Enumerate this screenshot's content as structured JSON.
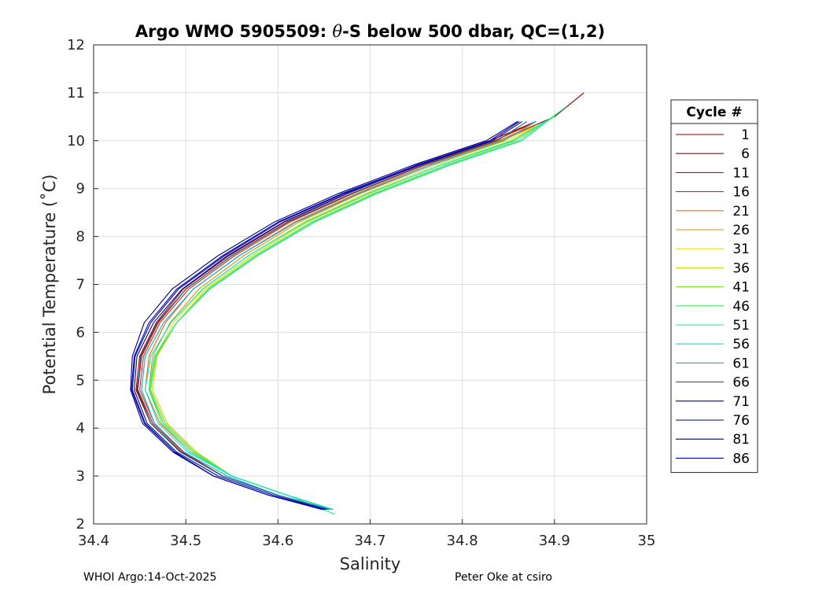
{
  "chart_data": {
    "type": "line",
    "title_prefix": "Argo WMO 5905509: ",
    "title_theta": "θ",
    "title_suffix": "-S below 500 dbar,  QC=(1,2)",
    "xlabel": "Salinity",
    "ylabel": "Potential Temperature (˚C)",
    "xlim": [
      34.4,
      35.0
    ],
    "ylim": [
      2,
      12
    ],
    "xticks": [
      "34.4",
      "34.5",
      "34.6",
      "34.7",
      "34.8",
      "34.9",
      "35"
    ],
    "yticks": [
      "2",
      "3",
      "4",
      "5",
      "6",
      "7",
      "8",
      "9",
      "10",
      "11",
      "12"
    ],
    "grid": true,
    "legend_title": "Cycle #",
    "legend_position": "right-outside",
    "series": [
      {
        "name": "1",
        "color": "#800000",
        "x": [
          34.655,
          34.6,
          34.54,
          34.495,
          34.462,
          34.447,
          34.452,
          34.47,
          34.5,
          34.55,
          34.61,
          34.68,
          34.76,
          34.84,
          34.9,
          34.932
        ],
        "y": [
          2.3,
          2.6,
          3.0,
          3.5,
          4.1,
          4.8,
          5.5,
          6.2,
          6.9,
          7.6,
          8.3,
          8.9,
          9.5,
          10.0,
          10.5,
          11.0
        ]
      },
      {
        "name": "6",
        "color": "#a00000",
        "x": [
          34.655,
          34.6,
          34.54,
          34.495,
          34.462,
          34.446,
          34.45,
          34.468,
          34.497,
          34.547,
          34.607,
          34.676,
          34.754,
          34.83,
          34.88
        ],
        "y": [
          2.3,
          2.6,
          3.0,
          3.5,
          4.1,
          4.8,
          5.5,
          6.2,
          6.9,
          7.6,
          8.3,
          8.9,
          9.5,
          10.0,
          10.4
        ]
      },
      {
        "name": "11",
        "color": "#e00000",
        "x": [
          34.655,
          34.6,
          34.54,
          34.497,
          34.464,
          34.448,
          34.452,
          34.47,
          34.5,
          34.55,
          34.61,
          34.68,
          34.758,
          34.835,
          34.88
        ],
        "y": [
          2.3,
          2.6,
          3.0,
          3.5,
          4.1,
          4.8,
          5.5,
          6.2,
          6.9,
          7.6,
          8.3,
          8.9,
          9.5,
          10.0,
          10.4
        ]
      },
      {
        "name": "16",
        "color": "#ff1800",
        "x": [
          34.655,
          34.6,
          34.54,
          34.498,
          34.466,
          34.45,
          34.454,
          34.472,
          34.503,
          34.553,
          34.613,
          34.682,
          34.76,
          34.835,
          34.87
        ],
        "y": [
          2.3,
          2.6,
          3.0,
          3.5,
          4.1,
          4.8,
          5.5,
          6.2,
          6.9,
          7.6,
          8.3,
          8.9,
          9.5,
          10.0,
          10.3
        ]
      },
      {
        "name": "21",
        "color": "#ff6000",
        "x": [
          34.658,
          34.61,
          34.55,
          34.505,
          34.472,
          34.456,
          34.46,
          34.478,
          34.508,
          34.558,
          34.618,
          34.686,
          34.764,
          34.84,
          34.875
        ],
        "y": [
          2.3,
          2.6,
          3.0,
          3.5,
          4.1,
          4.8,
          5.5,
          6.2,
          6.9,
          7.6,
          8.3,
          8.9,
          9.5,
          10.0,
          10.3
        ]
      },
      {
        "name": "26",
        "color": "#e09000",
        "x": [
          34.658,
          34.61,
          34.55,
          34.508,
          34.476,
          34.46,
          34.464,
          34.483,
          34.514,
          34.563,
          34.623,
          34.69,
          34.768,
          34.843,
          34.878
        ],
        "y": [
          2.3,
          2.6,
          3.0,
          3.5,
          4.1,
          4.8,
          5.5,
          6.2,
          6.9,
          7.6,
          8.3,
          8.9,
          9.5,
          10.0,
          10.3
        ]
      },
      {
        "name": "31",
        "color": "#f0e000",
        "x": [
          34.66,
          34.61,
          34.55,
          34.51,
          34.478,
          34.462,
          34.467,
          34.487,
          34.519,
          34.568,
          34.628,
          34.695,
          34.773,
          34.848,
          34.88
        ],
        "y": [
          2.3,
          2.6,
          3.0,
          3.5,
          4.1,
          4.8,
          5.5,
          6.2,
          6.9,
          7.6,
          8.3,
          8.9,
          9.5,
          10.0,
          10.3
        ]
      },
      {
        "name": "36",
        "color": "#c8e000",
        "x": [
          34.66,
          34.61,
          34.55,
          34.512,
          34.48,
          34.464,
          34.469,
          34.49,
          34.522,
          34.572,
          34.632,
          34.7,
          34.778,
          34.853,
          34.89
        ],
        "y": [
          2.3,
          2.6,
          3.0,
          3.5,
          4.1,
          4.8,
          5.5,
          6.2,
          6.9,
          7.6,
          8.3,
          8.9,
          9.5,
          10.0,
          10.4
        ]
      },
      {
        "name": "41",
        "color": "#80e030",
        "x": [
          34.66,
          34.61,
          34.55,
          34.51,
          34.478,
          34.462,
          34.468,
          34.49,
          34.524,
          34.575,
          34.636,
          34.704,
          34.783,
          34.858,
          34.9
        ],
        "y": [
          2.3,
          2.6,
          3.0,
          3.5,
          4.1,
          4.8,
          5.5,
          6.2,
          6.9,
          7.6,
          8.3,
          8.9,
          9.5,
          10.0,
          10.5
        ]
      },
      {
        "name": "46",
        "color": "#40f060",
        "x": [
          34.66,
          34.61,
          34.55,
          34.508,
          34.476,
          34.461,
          34.467,
          34.49,
          34.525,
          34.577,
          34.638,
          34.706,
          34.786,
          34.862,
          34.905
        ],
        "y": [
          2.3,
          2.6,
          3.0,
          3.5,
          4.1,
          4.8,
          5.5,
          6.2,
          6.9,
          7.6,
          8.3,
          8.9,
          9.5,
          10.0,
          10.6
        ]
      },
      {
        "name": "51",
        "color": "#20e8a0",
        "x": [
          34.662,
          34.61,
          34.55,
          34.505,
          34.474,
          34.46,
          34.466,
          34.49,
          34.526,
          34.578,
          34.64,
          34.708,
          34.788,
          34.865,
          34.912
        ],
        "y": [
          2.2,
          2.6,
          3.0,
          3.5,
          4.1,
          4.8,
          5.5,
          6.2,
          6.9,
          7.6,
          8.3,
          8.9,
          9.5,
          10.0,
          10.7
        ]
      },
      {
        "name": "56",
        "color": "#00e0e0",
        "x": [
          34.66,
          34.61,
          34.55,
          34.502,
          34.47,
          34.456,
          34.462,
          34.484,
          34.518,
          34.568,
          34.63,
          34.698,
          34.778,
          34.855,
          34.89
        ],
        "y": [
          2.3,
          2.6,
          3.0,
          3.5,
          4.1,
          4.8,
          5.5,
          6.2,
          6.9,
          7.6,
          8.3,
          8.9,
          9.5,
          10.0,
          10.4
        ]
      },
      {
        "name": "61",
        "color": "#00b0e0",
        "x": [
          34.658,
          34.6,
          34.545,
          34.498,
          34.466,
          34.452,
          34.456,
          34.476,
          34.508,
          34.558,
          34.62,
          34.688,
          34.768,
          34.845,
          34.88
        ],
        "y": [
          2.3,
          2.6,
          3.0,
          3.5,
          4.1,
          4.8,
          5.5,
          6.2,
          6.9,
          7.6,
          8.3,
          8.9,
          9.5,
          10.0,
          10.4
        ]
      },
      {
        "name": "66",
        "color": "#007090",
        "x": [
          34.655,
          34.6,
          34.54,
          34.494,
          34.462,
          34.448,
          34.451,
          34.469,
          34.5,
          34.55,
          34.611,
          34.68,
          34.76,
          34.838,
          34.87
        ],
        "y": [
          2.3,
          2.6,
          3.0,
          3.5,
          4.1,
          4.8,
          5.5,
          6.2,
          6.9,
          7.6,
          8.3,
          8.9,
          9.5,
          10.0,
          10.4
        ]
      },
      {
        "name": "71",
        "color": "#0000a0",
        "x": [
          34.652,
          34.595,
          34.535,
          34.49,
          34.458,
          34.444,
          34.447,
          34.465,
          34.496,
          34.545,
          34.606,
          34.675,
          34.755,
          34.833,
          34.865
        ],
        "y": [
          2.3,
          2.6,
          3.0,
          3.5,
          4.1,
          4.8,
          5.5,
          6.2,
          6.9,
          7.6,
          8.3,
          8.9,
          9.5,
          10.0,
          10.4
        ]
      },
      {
        "name": "76",
        "color": "#000080",
        "x": [
          34.65,
          34.59,
          34.53,
          34.488,
          34.456,
          34.442,
          34.445,
          34.462,
          34.492,
          34.542,
          34.602,
          34.672,
          34.752,
          34.83,
          34.862
        ],
        "y": [
          2.3,
          2.6,
          3.0,
          3.5,
          4.1,
          4.8,
          5.5,
          6.2,
          6.9,
          7.6,
          8.3,
          8.9,
          9.5,
          10.0,
          10.4
        ]
      },
      {
        "name": "81",
        "color": "#000060",
        "x": [
          34.648,
          34.59,
          34.53,
          34.486,
          34.453,
          34.44,
          34.442,
          34.455,
          34.485,
          34.535,
          34.596,
          34.666,
          34.748,
          34.826,
          34.86
        ],
        "y": [
          2.3,
          2.6,
          3.0,
          3.5,
          4.1,
          4.8,
          5.5,
          6.2,
          6.9,
          7.6,
          8.3,
          8.9,
          9.5,
          10.0,
          10.4
        ]
      },
      {
        "name": "86",
        "color": "#0000e0",
        "x": [
          34.65,
          34.59,
          34.53,
          34.488,
          34.455,
          34.441,
          34.444,
          34.46,
          34.49,
          34.54,
          34.6,
          34.67,
          34.752,
          34.83,
          34.862
        ],
        "y": [
          2.3,
          2.6,
          3.0,
          3.5,
          4.1,
          4.8,
          5.5,
          6.2,
          6.9,
          7.6,
          8.3,
          8.9,
          9.5,
          10.0,
          10.4
        ]
      }
    ]
  },
  "footer": {
    "left": "WHOI Argo:14-Oct-2025",
    "right": "Peter Oke at csiro"
  }
}
